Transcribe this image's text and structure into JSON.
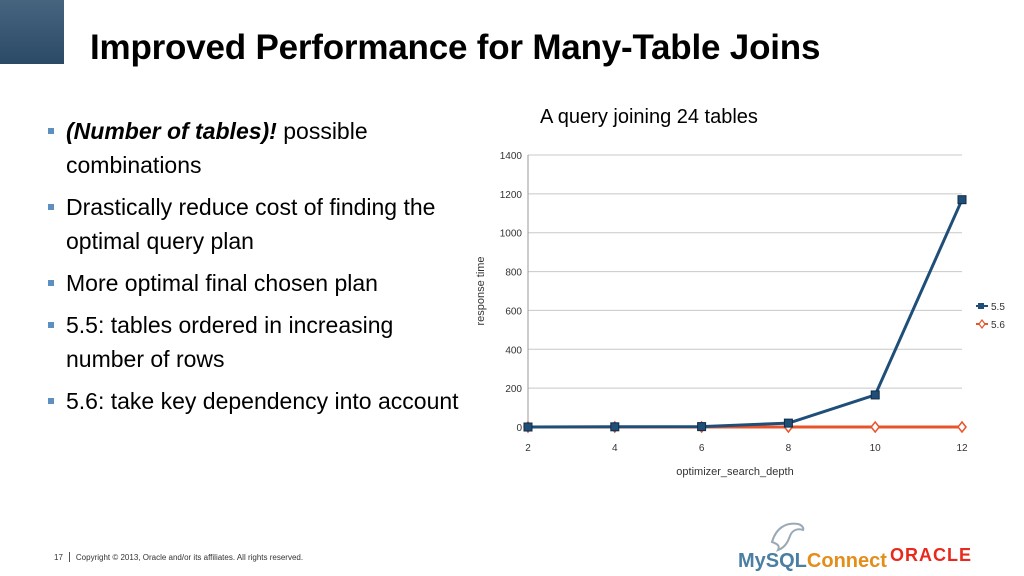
{
  "slide": {
    "title": "Improved Performance for Many-Table Joins",
    "bullets": [
      {
        "emph": "(Number of tables)!",
        "text": " possible combinations"
      },
      {
        "emph": "",
        "text": "Drastically reduce cost of finding the optimal query plan"
      },
      {
        "emph": "",
        "text": "More optimal final chosen plan"
      },
      {
        "emph": "",
        "text": "5.5: tables ordered in increasing number of rows"
      },
      {
        "emph": "",
        "text": "5.6: take key dependency into account"
      }
    ],
    "footer": {
      "page": "17",
      "copyright": "Copyright © 2013, Oracle and/or its affiliates. All rights reserved."
    },
    "logos": {
      "mysql": "MySQL",
      "connect": "Connect",
      "oracle": "ORACLE"
    }
  },
  "colors": {
    "accent": "#2b4a66",
    "bullet": "#5f8fbf",
    "series_55": "#1f4e79",
    "series_56": "#e8542a"
  },
  "chart_data": {
    "type": "line",
    "title": "A query joining 24 tables",
    "xlabel": "optimizer_search_depth",
    "ylabel": "response time",
    "x": [
      2,
      4,
      6,
      8,
      10,
      12
    ],
    "ylim": [
      0,
      1400
    ],
    "yticks": [
      0,
      200,
      400,
      600,
      800,
      1000,
      1200,
      1400
    ],
    "grid": true,
    "legend_position": "right",
    "series": [
      {
        "name": "5.5",
        "values": [
          0,
          1,
          2,
          20,
          165,
          1170
        ],
        "color": "#1f4e79",
        "marker": "square"
      },
      {
        "name": "5.6",
        "values": [
          0,
          0,
          0,
          0,
          0,
          0
        ],
        "color": "#e8542a",
        "marker": "diamond"
      }
    ]
  }
}
